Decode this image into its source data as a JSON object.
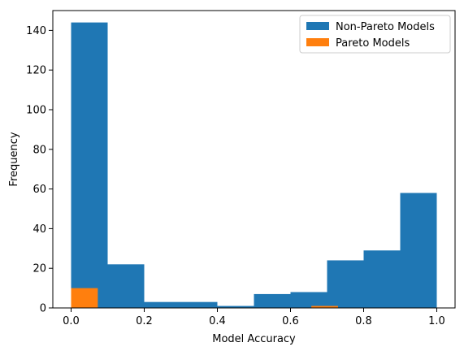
{
  "chart_data": {
    "type": "bar",
    "subtype": "overlaid-histogram",
    "xlabel": "Model Accuracy",
    "ylabel": "Frequency",
    "xlim": [
      -0.05,
      1.05
    ],
    "ylim": [
      0,
      150
    ],
    "x_ticks": [
      0.0,
      0.2,
      0.4,
      0.6,
      0.8,
      1.0
    ],
    "x_tick_labels": [
      "0.0",
      "0.2",
      "0.4",
      "0.6",
      "0.8",
      "1.0"
    ],
    "y_ticks": [
      0,
      20,
      40,
      60,
      80,
      100,
      120,
      140
    ],
    "y_tick_labels": [
      "0",
      "20",
      "40",
      "60",
      "80",
      "100",
      "120",
      "140"
    ],
    "grid": false,
    "legend_position": "top-right",
    "series": [
      {
        "name": "Non-Pareto Models",
        "color": "#1f77b4",
        "bins": [
          {
            "start": 0.0,
            "end": 0.1,
            "count": 144
          },
          {
            "start": 0.1,
            "end": 0.2,
            "count": 22
          },
          {
            "start": 0.2,
            "end": 0.3,
            "count": 3
          },
          {
            "start": 0.3,
            "end": 0.4,
            "count": 3
          },
          {
            "start": 0.4,
            "end": 0.5,
            "count": 1
          },
          {
            "start": 0.5,
            "end": 0.6,
            "count": 7
          },
          {
            "start": 0.6,
            "end": 0.7,
            "count": 8
          },
          {
            "start": 0.7,
            "end": 0.8,
            "count": 24
          },
          {
            "start": 0.8,
            "end": 0.9,
            "count": 29
          },
          {
            "start": 0.9,
            "end": 1.0,
            "count": 58
          }
        ]
      },
      {
        "name": "Pareto Models",
        "color": "#ff7f0e",
        "bins": [
          {
            "start": 0.0,
            "end": 0.073,
            "count": 10
          },
          {
            "start": 0.073,
            "end": 0.146,
            "count": 0
          },
          {
            "start": 0.146,
            "end": 0.219,
            "count": 0
          },
          {
            "start": 0.219,
            "end": 0.292,
            "count": 0
          },
          {
            "start": 0.292,
            "end": 0.365,
            "count": 0
          },
          {
            "start": 0.365,
            "end": 0.438,
            "count": 0
          },
          {
            "start": 0.438,
            "end": 0.511,
            "count": 0
          },
          {
            "start": 0.511,
            "end": 0.584,
            "count": 0
          },
          {
            "start": 0.584,
            "end": 0.657,
            "count": 0
          },
          {
            "start": 0.657,
            "end": 0.73,
            "count": 1
          }
        ]
      }
    ]
  }
}
